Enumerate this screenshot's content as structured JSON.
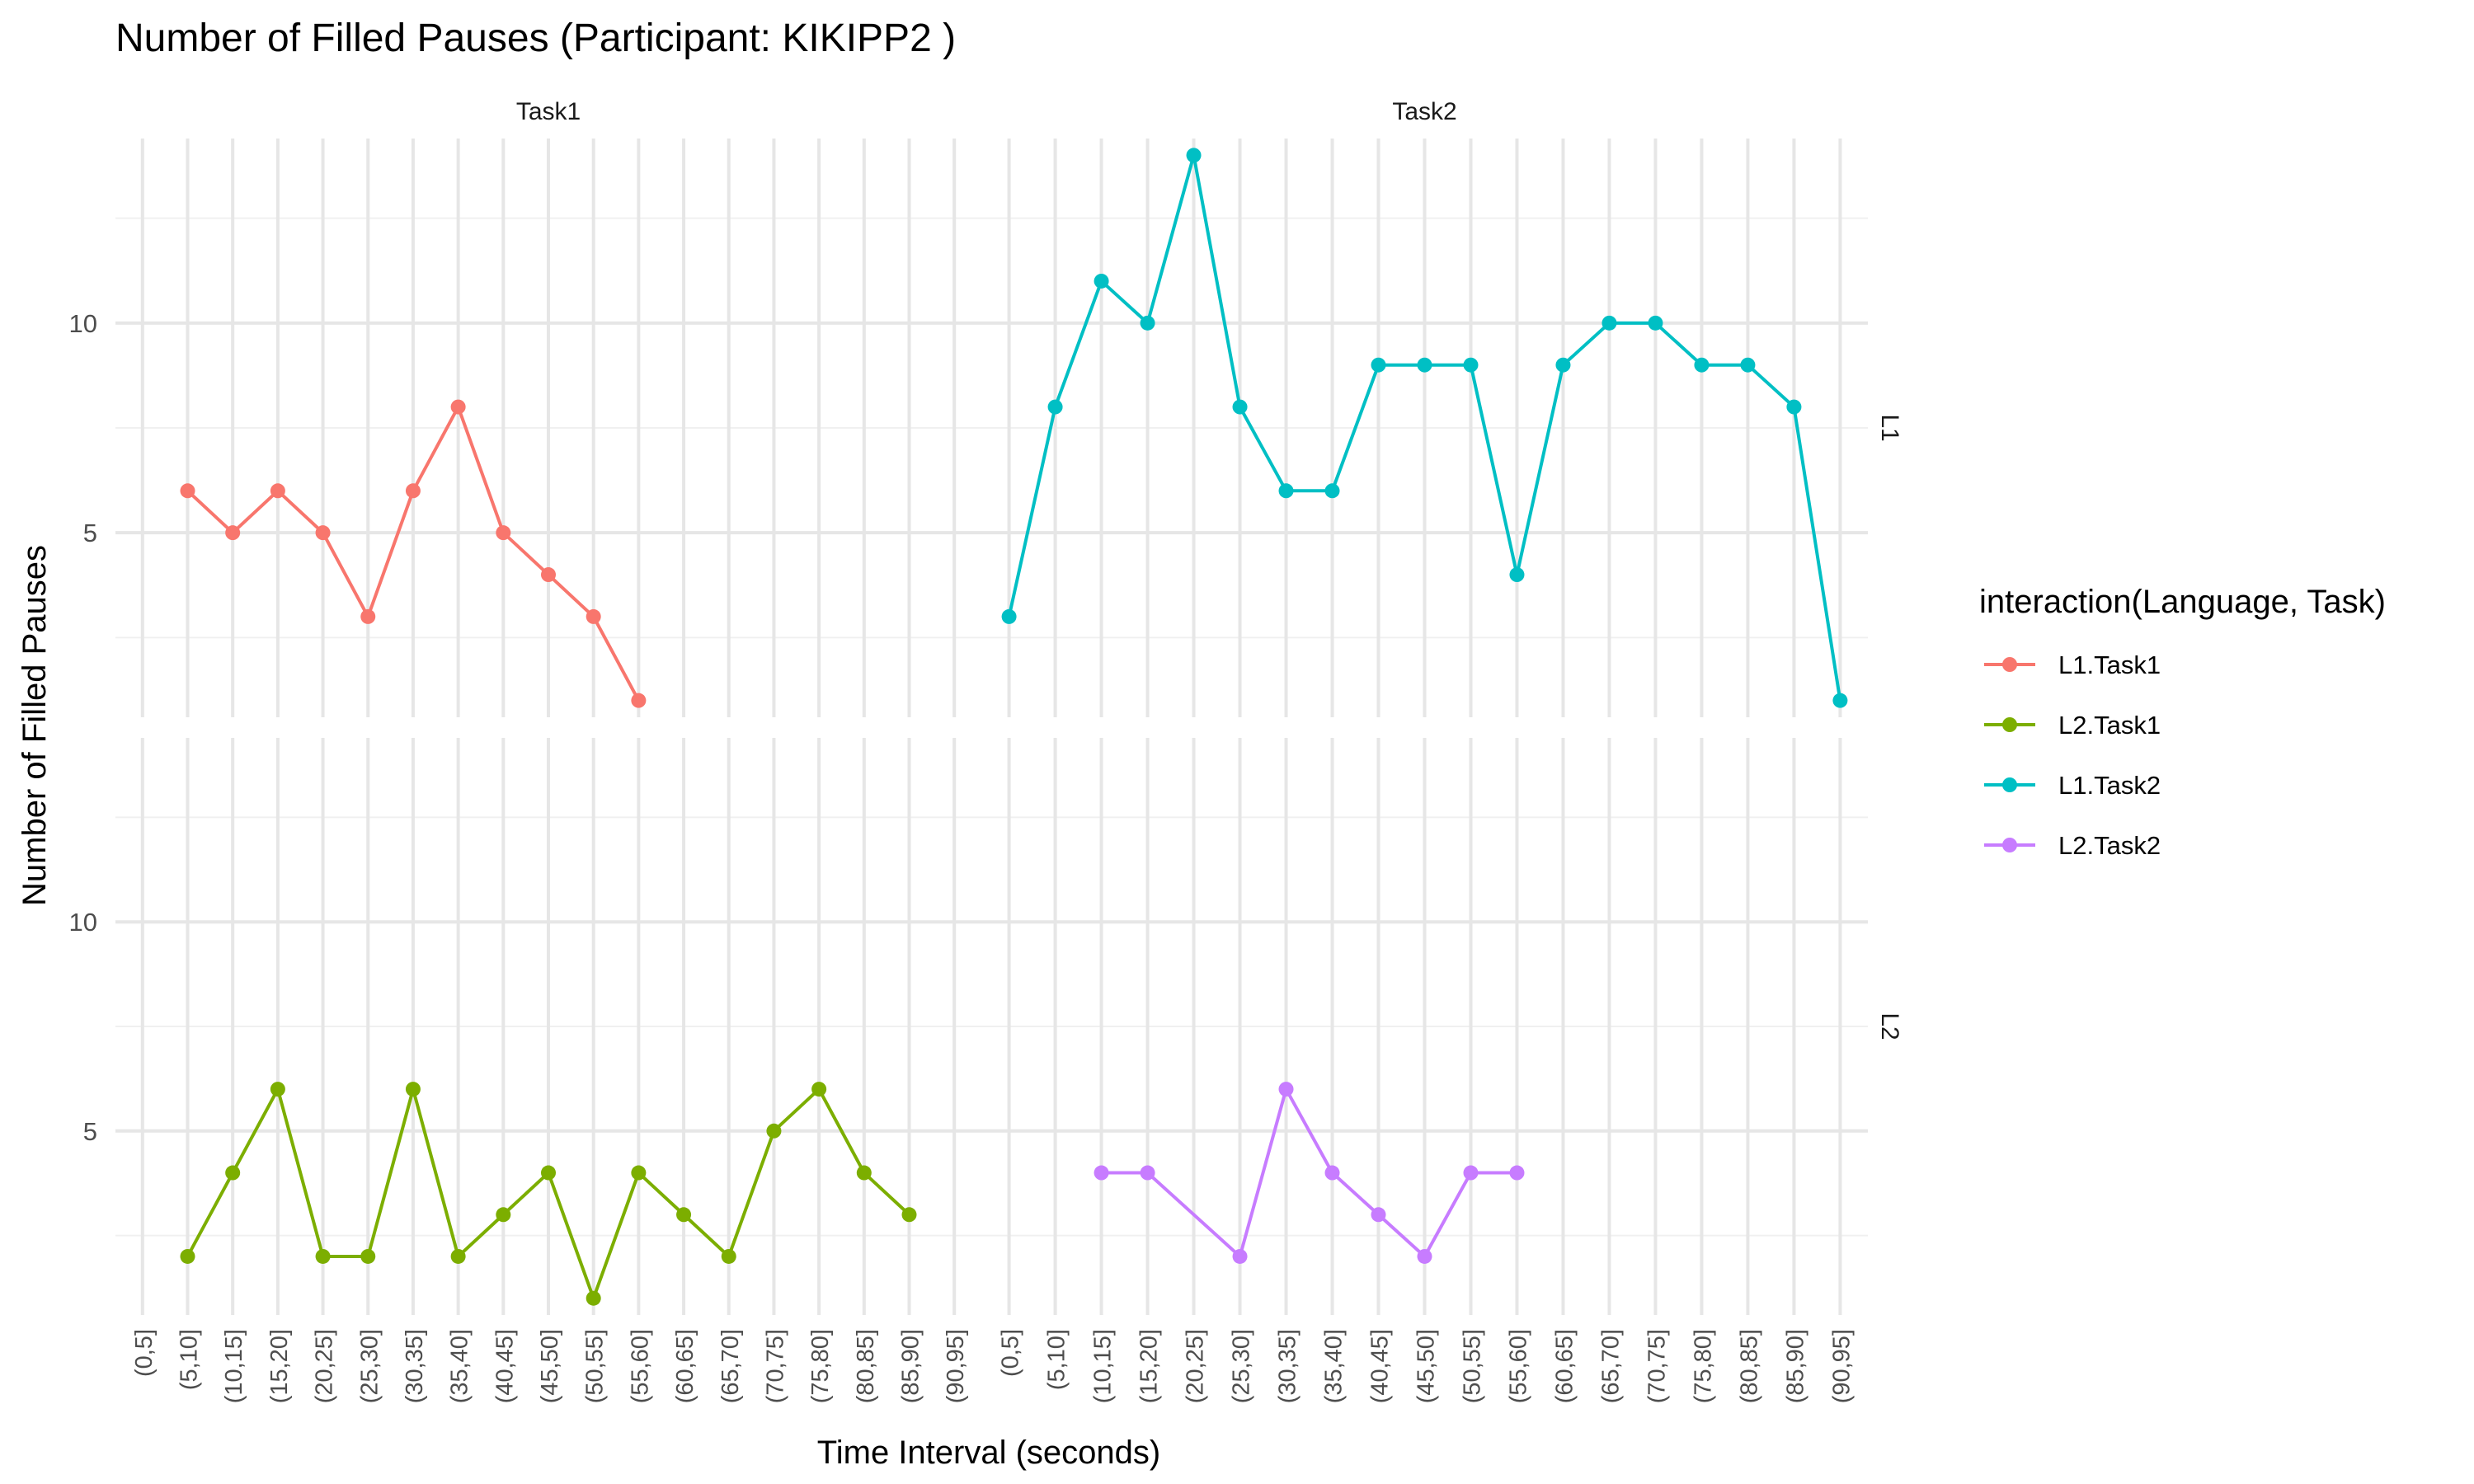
{
  "chart_data": {
    "type": "line",
    "title": "Number of Filled Pauses (Participant: KIKIPP2 )",
    "xlabel": "Time Interval (seconds)",
    "ylabel": "Number of Filled Pauses",
    "x_categories": [
      "(0,5]",
      "(5,10]",
      "(10,15]",
      "(15,20]",
      "(20,25]",
      "(25,30]",
      "(30,35]",
      "(35,40]",
      "(40,45]",
      "(45,50]",
      "(50,55]",
      "(55,60]",
      "(60,65]",
      "(65,70]",
      "(70,75]",
      "(75,80]",
      "(80,85]",
      "(85,90]",
      "(90,95]"
    ],
    "y_ticks": [
      5,
      10
    ],
    "ylim": [
      0.6,
      14.4
    ],
    "grid": true,
    "facet_columns": [
      "Task1",
      "Task2"
    ],
    "facet_rows": [
      "L1",
      "L2"
    ],
    "legend": {
      "title": "interaction(Language, Task)",
      "position": "right",
      "items": [
        {
          "label": "L1.Task1",
          "color": "#F8766D"
        },
        {
          "label": "L2.Task1",
          "color": "#7CAE00"
        },
        {
          "label": "L1.Task2",
          "color": "#00BFC4"
        },
        {
          "label": "L2.Task2",
          "color": "#C77CFF"
        }
      ]
    },
    "series": [
      {
        "name": "L1.Task1",
        "row": "L1",
        "col": "Task1",
        "color": "#F8766D",
        "x": [
          "(5,10]",
          "(10,15]",
          "(15,20]",
          "(20,25]",
          "(25,30]",
          "(30,35]",
          "(35,40]",
          "(40,45]",
          "(45,50]",
          "(50,55]",
          "(55,60]"
        ],
        "y": [
          6,
          5,
          6,
          5,
          3,
          6,
          8,
          5,
          4,
          3,
          1
        ]
      },
      {
        "name": "L1.Task2",
        "row": "L1",
        "col": "Task2",
        "color": "#00BFC4",
        "x": [
          "(0,5]",
          "(5,10]",
          "(10,15]",
          "(15,20]",
          "(20,25]",
          "(25,30]",
          "(30,35]",
          "(35,40]",
          "(40,45]",
          "(45,50]",
          "(50,55]",
          "(55,60]",
          "(60,65]",
          "(65,70]",
          "(70,75]",
          "(75,80]",
          "(80,85]",
          "(85,90]",
          "(90,95]"
        ],
        "y": [
          3,
          8,
          11,
          10,
          14,
          8,
          6,
          6,
          9,
          9,
          9,
          4,
          9,
          10,
          10,
          9,
          9,
          8,
          1
        ]
      },
      {
        "name": "L2.Task1",
        "row": "L2",
        "col": "Task1",
        "color": "#7CAE00",
        "x": [
          "(5,10]",
          "(10,15]",
          "(15,20]",
          "(20,25]",
          "(25,30]",
          "(30,35]",
          "(35,40]",
          "(40,45]",
          "(45,50]",
          "(50,55]",
          "(55,60]",
          "(60,65]",
          "(65,70]",
          "(70,75]",
          "(75,80]",
          "(80,85]",
          "(85,90]"
        ],
        "y": [
          2,
          4,
          6,
          2,
          2,
          6,
          2,
          3,
          4,
          1,
          4,
          3,
          2,
          5,
          6,
          4,
          3
        ]
      },
      {
        "name": "L2.Task2",
        "row": "L2",
        "col": "Task2",
        "color": "#C77CFF",
        "x": [
          "(10,15]",
          "(15,20]",
          "(25,30]",
          "(30,35]",
          "(35,40]",
          "(40,45]",
          "(45,50]",
          "(50,55]",
          "(55,60]"
        ],
        "y": [
          4,
          4,
          2,
          6,
          4,
          3,
          2,
          4,
          4
        ]
      }
    ]
  }
}
